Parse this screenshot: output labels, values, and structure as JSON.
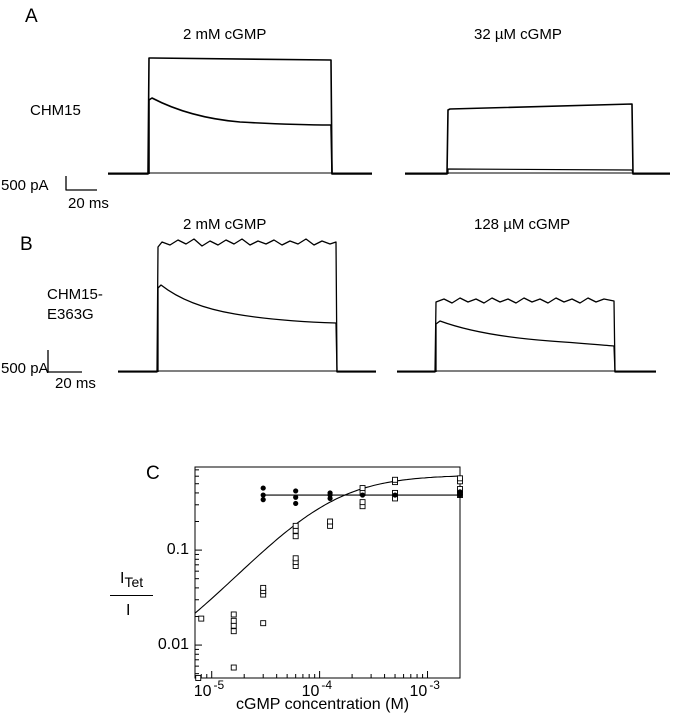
{
  "panel_a": {
    "letter": "A",
    "cell_label": "CHM15",
    "left_title": "2 mM cGMP",
    "right_title": "32 µM cGMP",
    "scale_current": "500 pA",
    "scale_time": "20 ms"
  },
  "panel_b": {
    "letter": "B",
    "cell_label_line1": "CHM15-",
    "cell_label_line2": "E363G",
    "left_title": "2 mM cGMP",
    "right_title": "128 µM cGMP",
    "scale_current": "500 pA",
    "scale_time": "20 ms"
  },
  "panel_c": {
    "letter": "C",
    "ylabel_main": "I",
    "ylabel_sub": "Tet",
    "ylabel_denominator": "I",
    "xlabel": "cGMP concentration (M)"
  },
  "chart_data": {
    "type": "scatter",
    "x_scale": "log",
    "y_scale": "log",
    "xlim": [
      7e-06,
      0.002
    ],
    "ylim": [
      0.0045,
      0.75
    ],
    "x_ticks": [
      {
        "value": 1e-05,
        "base": "10",
        "exp": "-5"
      },
      {
        "value": 0.0001,
        "base": "10",
        "exp": "-4"
      },
      {
        "value": 0.001,
        "base": "10",
        "exp": "-3"
      }
    ],
    "y_ticks": [
      {
        "value": 0.01,
        "label": "0.01"
      },
      {
        "value": 0.1,
        "label": "0.1"
      }
    ],
    "series": [
      {
        "marker": "open-square",
        "points": [
          [
            7.5e-06,
            0.0045
          ],
          [
            8e-06,
            0.019
          ],
          [
            1.6e-05,
            0.0058
          ],
          [
            1.6e-05,
            0.014
          ],
          [
            1.6e-05,
            0.016
          ],
          [
            1.6e-05,
            0.018
          ],
          [
            1.6e-05,
            0.021
          ],
          [
            3e-05,
            0.017
          ],
          [
            3e-05,
            0.034
          ],
          [
            3e-05,
            0.037
          ],
          [
            3e-05,
            0.04
          ],
          [
            6e-05,
            0.068
          ],
          [
            6e-05,
            0.075
          ],
          [
            6e-05,
            0.082
          ],
          [
            6e-05,
            0.14
          ],
          [
            6e-05,
            0.16
          ],
          [
            6e-05,
            0.18
          ],
          [
            0.000125,
            0.18
          ],
          [
            0.000125,
            0.2
          ],
          [
            0.00025,
            0.29
          ],
          [
            0.00025,
            0.32
          ],
          [
            0.00025,
            0.4
          ],
          [
            0.00025,
            0.45
          ],
          [
            0.0005,
            0.35
          ],
          [
            0.0005,
            0.4
          ],
          [
            0.0005,
            0.52
          ],
          [
            0.0005,
            0.55
          ],
          [
            0.002,
            0.38
          ],
          [
            0.002,
            0.41
          ],
          [
            0.002,
            0.44
          ],
          [
            0.002,
            0.53
          ],
          [
            0.002,
            0.57
          ]
        ]
      },
      {
        "marker": "filled-circle",
        "points": [
          [
            3e-05,
            0.34
          ],
          [
            3e-05,
            0.38
          ],
          [
            3e-05,
            0.45
          ],
          [
            6e-05,
            0.31
          ],
          [
            6e-05,
            0.36
          ],
          [
            6e-05,
            0.42
          ],
          [
            0.000125,
            0.35
          ],
          [
            0.000125,
            0.38
          ],
          [
            0.000125,
            0.4
          ],
          [
            0.00025,
            0.38
          ],
          [
            0.0005,
            0.38
          ],
          [
            0.002,
            0.38
          ],
          [
            0.002,
            0.41
          ]
        ]
      }
    ],
    "fits": [
      {
        "kind": "hill",
        "bottom": 0.0045,
        "top": 0.62,
        "ec50": 0.00012,
        "n": 1.25
      },
      {
        "kind": "constant",
        "value": 0.38,
        "x_from": 3e-05,
        "x_to": 0.002
      }
    ]
  }
}
